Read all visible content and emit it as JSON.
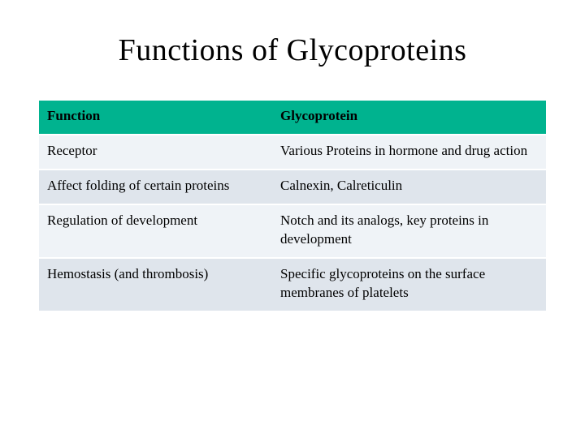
{
  "title": "Functions of Glycoproteins",
  "table": {
    "type": "table",
    "header_bg": "#00b38f",
    "row_colors": {
      "odd": "#eff3f7",
      "even": "#dfe5ec"
    },
    "column_widths_pct": [
      46,
      54
    ],
    "columns": [
      "Function",
      "Glycoprotein"
    ],
    "rows": [
      [
        "Receptor",
        "Various Proteins in hormone and drug action"
      ],
      [
        "Affect folding of certain proteins",
        "Calnexin, Calreticulin"
      ],
      [
        "Regulation of development",
        "Notch and its analogs, key proteins in development"
      ],
      [
        "Hemostasis (and thrombosis)",
        "Specific glycoproteins on the surface membranes of platelets"
      ]
    ],
    "title_fontsize": 38,
    "cell_fontsize": 17,
    "text_color": "#000000",
    "background_color": "#ffffff"
  }
}
